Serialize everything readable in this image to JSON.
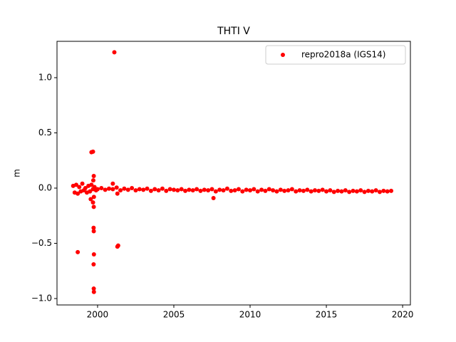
{
  "chart_data": {
    "type": "scatter",
    "title": "THTI V",
    "y_label": "m",
    "series": [
      {
        "name": "repro2018a (IGS14)",
        "color": "#ff0000",
        "x": [
          1998.4,
          1998.5,
          1998.6,
          1998.7,
          1998.8,
          1998.9,
          1999.0,
          1999.1,
          1999.2,
          1999.3,
          1999.4,
          1999.5,
          1999.6,
          1999.7,
          1999.8,
          1999.9,
          2000,
          2000.25,
          2000.5,
          2000.75,
          2001,
          2001.25,
          2001.5,
          2001.75,
          2002,
          2002.25,
          2002.5,
          2002.75,
          2003,
          2003.25,
          2003.5,
          2003.75,
          2004,
          2004.25,
          2004.5,
          2004.75,
          2005,
          2005.25,
          2005.5,
          2005.75,
          2006,
          2006.25,
          2006.5,
          2006.75,
          2007,
          2007.25,
          2007.5,
          2007.75,
          2008,
          2008.25,
          2008.5,
          2008.75,
          2009,
          2009.25,
          2009.5,
          2009.75,
          2010,
          2010.25,
          2010.5,
          2010.75,
          2011,
          2011.25,
          2011.5,
          2011.75,
          2012,
          2012.25,
          2012.5,
          2012.75,
          2013,
          2013.25,
          2013.5,
          2013.75,
          2014,
          2014.25,
          2014.5,
          2014.75,
          2015,
          2015.25,
          2015.5,
          2015.75,
          2016,
          2016.25,
          2016.5,
          2016.75,
          2017,
          2017.25,
          2017.5,
          2017.75,
          2018,
          2018.25,
          2018.5,
          2018.75,
          2019,
          2019.25,
          2001.1,
          1999.6,
          1999.7,
          1999.75,
          1999.72,
          1999.55,
          1999.7,
          1999.75,
          1999.76,
          1999.74,
          1999.75,
          1999.76,
          1999.74,
          1999.75,
          1999.76,
          1998.7,
          2001.3,
          2001.35,
          2001.3,
          2007.6,
          2001.0
        ],
        "values": [
          0.02,
          -0.04,
          0.03,
          -0.05,
          0.01,
          -0.03,
          0.04,
          -0.02,
          0.0,
          -0.04,
          0.02,
          -0.03,
          0.03,
          -0.01,
          0.01,
          -0.02,
          -0.01,
          0.0,
          -0.015,
          -0.005,
          -0.01,
          0.005,
          -0.02,
          -0.005,
          -0.015,
          0.0,
          -0.02,
          -0.01,
          -0.015,
          -0.005,
          -0.025,
          -0.01,
          -0.02,
          -0.005,
          -0.025,
          -0.01,
          -0.015,
          -0.02,
          -0.01,
          -0.025,
          -0.015,
          -0.02,
          -0.01,
          -0.025,
          -0.015,
          -0.02,
          -0.01,
          -0.03,
          -0.015,
          -0.02,
          -0.005,
          -0.025,
          -0.02,
          -0.01,
          -0.03,
          -0.015,
          -0.02,
          -0.01,
          -0.03,
          -0.015,
          -0.025,
          -0.01,
          -0.02,
          -0.03,
          -0.015,
          -0.025,
          -0.02,
          -0.01,
          -0.03,
          -0.02,
          -0.025,
          -0.015,
          -0.03,
          -0.02,
          -0.025,
          -0.015,
          -0.03,
          -0.02,
          -0.035,
          -0.025,
          -0.03,
          -0.02,
          -0.035,
          -0.025,
          -0.03,
          -0.02,
          -0.035,
          -0.025,
          -0.03,
          -0.02,
          -0.035,
          -0.025,
          -0.03,
          -0.025,
          1.23,
          0.325,
          0.33,
          0.11,
          0.07,
          -0.1,
          -0.13,
          -0.17,
          -0.08,
          -0.36,
          -0.39,
          -0.6,
          -0.69,
          -0.91,
          -0.94,
          -0.58,
          -0.53,
          -0.52,
          -0.05,
          -0.09,
          0.04
        ]
      }
    ],
    "xlim": [
      1997.34,
      2020.51
    ],
    "ylim": [
      -1.058,
      1.329
    ],
    "xticks": [
      2000,
      2005,
      2010,
      2015,
      2020
    ],
    "yticks": [
      {
        "value": -1.0,
        "label": "−1.0"
      },
      {
        "value": -0.5,
        "label": "−0.5"
      },
      {
        "value": 0.0,
        "label": "0.0"
      },
      {
        "value": 0.5,
        "label": "0.5"
      },
      {
        "value": 1.0,
        "label": "1.0"
      }
    ],
    "legend": "upper right",
    "grid": false
  }
}
